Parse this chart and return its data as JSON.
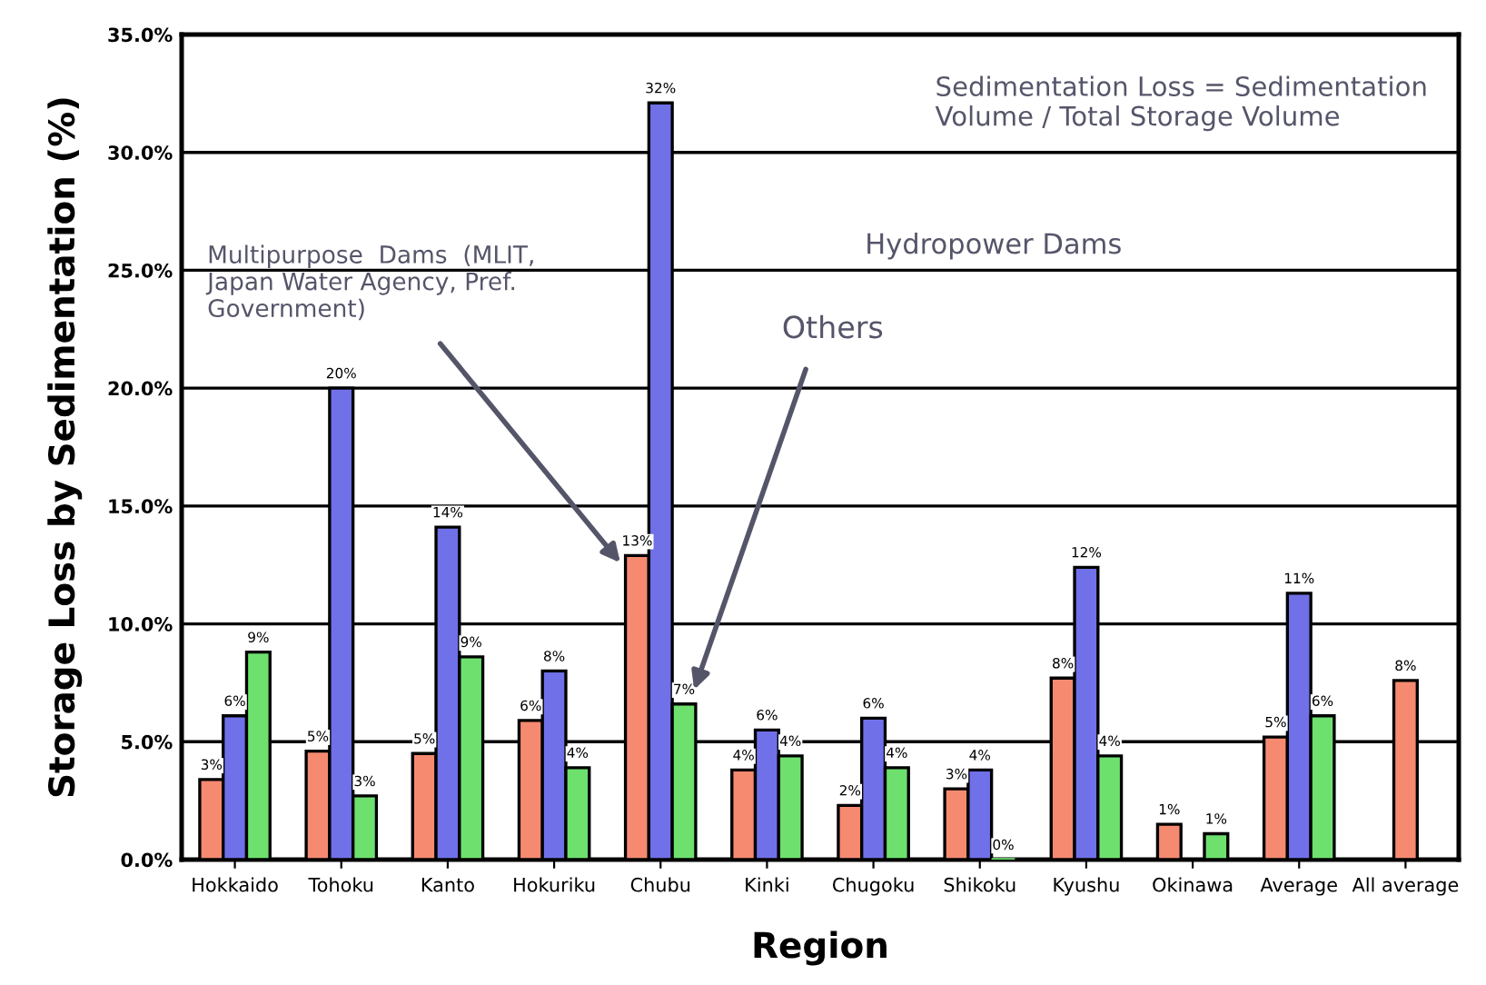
{
  "chart_data": {
    "type": "bar",
    "xlabel": "Region",
    "ylabel": "Storage Loss by Sedimentation (%)",
    "categories": [
      "Hokkaido",
      "Tohoku",
      "Kanto",
      "Hokuriku",
      "Chubu",
      "Kinki",
      "Chugoku",
      "Shikoku",
      "Kyushu",
      "Okinawa",
      "Average",
      "All average"
    ],
    "series": [
      {
        "color": "#f58a70",
        "values": [
          3.4,
          4.6,
          4.5,
          5.9,
          12.9,
          3.8,
          2.3,
          3.0,
          7.7,
          1.5,
          5.2,
          7.6
        ],
        "value_labels": [
          "3%",
          "5%",
          "5%",
          "6%",
          "13%",
          "4%",
          "2%",
          "3%",
          "8%",
          "1%",
          "5%",
          "8%"
        ]
      },
      {
        "color": "#7070e8",
        "values": [
          6.1,
          20.0,
          14.1,
          8.0,
          32.1,
          5.5,
          6.0,
          3.8,
          12.4,
          null,
          11.3,
          null
        ],
        "value_labels": [
          "6%",
          "20%",
          "14%",
          "8%",
          "32%",
          "6%",
          "6%",
          "4%",
          "12%",
          null,
          "11%",
          null
        ]
      },
      {
        "color": "#6ee06e",
        "values": [
          8.8,
          2.7,
          8.6,
          3.9,
          6.6,
          4.4,
          3.9,
          0,
          4.4,
          1.1,
          6.1,
          null
        ],
        "value_labels": [
          "9%",
          "3%",
          "9%",
          "4%",
          "7%",
          "4%",
          "4%",
          "0%",
          "4%",
          "1%",
          "6%",
          null
        ]
      }
    ],
    "ylim": [
      0,
      35
    ],
    "yticks": [
      {
        "value": 0,
        "label": "0.0%"
      },
      {
        "value": 5,
        "label": "5.0%"
      },
      {
        "value": 10,
        "label": "10.0%"
      },
      {
        "value": 15,
        "label": "15.0%"
      },
      {
        "value": 20,
        "label": "20.0%"
      },
      {
        "value": 25,
        "label": "25.0%"
      },
      {
        "value": 30,
        "label": "30.0%"
      },
      {
        "value": 35,
        "label": "35.0%"
      }
    ],
    "grid": "y",
    "annotations": [
      "Sedimentation Loss = Sedimentation\nVolume / Total Storage Volume",
      "Multipurpose  Dams  (MLIT,\nJapan Water Agency, Pref.\nGovernment)",
      "Hydropower Dams",
      "Others"
    ]
  }
}
